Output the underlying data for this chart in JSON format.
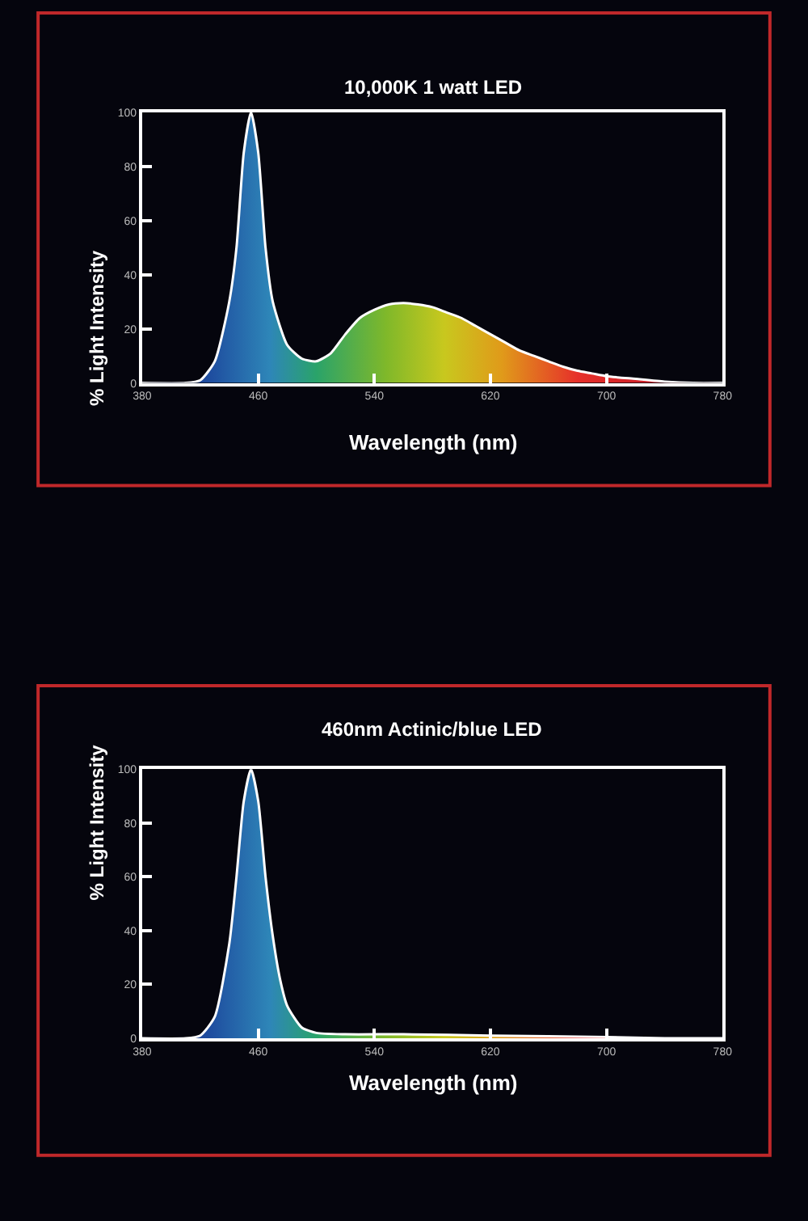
{
  "chart_data": [
    {
      "type": "area",
      "title": "10,000K 1 watt LED",
      "xlabel": "Wavelength (nm)",
      "ylabel": "% Light Intensity",
      "xlim": [
        380,
        780
      ],
      "xticks": [
        380,
        460,
        540,
        620,
        700,
        780
      ],
      "ylim": [
        0,
        100
      ],
      "yticks": [
        0,
        20,
        40,
        60,
        80,
        100
      ],
      "grid": false,
      "x": [
        380,
        410,
        420,
        430,
        440,
        445,
        450,
        455,
        460,
        465,
        470,
        480,
        490,
        500,
        510,
        520,
        530,
        540,
        550,
        560,
        570,
        580,
        590,
        600,
        610,
        620,
        630,
        640,
        650,
        660,
        670,
        680,
        690,
        700,
        720,
        740,
        760,
        780
      ],
      "series": [
        {
          "color": "#ffffff",
          "values": [
            0,
            0,
            1,
            8,
            30,
            50,
            85,
            100,
            85,
            50,
            30,
            14,
            9,
            8,
            11,
            18,
            24,
            27,
            29,
            29.5,
            29,
            28,
            26,
            24,
            21,
            18,
            15,
            12,
            10,
            8,
            6,
            4.5,
            3.5,
            2.5,
            1.5,
            0.5,
            0,
            0
          ]
        }
      ]
    },
    {
      "type": "area",
      "title": "460nm Actinic/blue LED",
      "xlabel": "Wavelength (nm)",
      "ylabel": "% Light Intensity",
      "xlim": [
        380,
        780
      ],
      "xticks": [
        380,
        460,
        540,
        620,
        700,
        780
      ],
      "ylim": [
        0,
        100
      ],
      "yticks": [
        0,
        20,
        40,
        60,
        80,
        100
      ],
      "grid": false,
      "x": [
        380,
        410,
        420,
        430,
        440,
        445,
        450,
        455,
        460,
        465,
        470,
        475,
        480,
        490,
        500,
        520,
        560,
        620,
        700,
        740,
        780
      ],
      "series": [
        {
          "color": "#ffffff",
          "values": [
            0,
            0,
            1,
            8,
            35,
            60,
            88,
            100,
            88,
            60,
            38,
            22,
            12,
            4,
            2,
            1.5,
            1.5,
            1,
            0.5,
            0,
            0
          ]
        }
      ]
    }
  ]
}
